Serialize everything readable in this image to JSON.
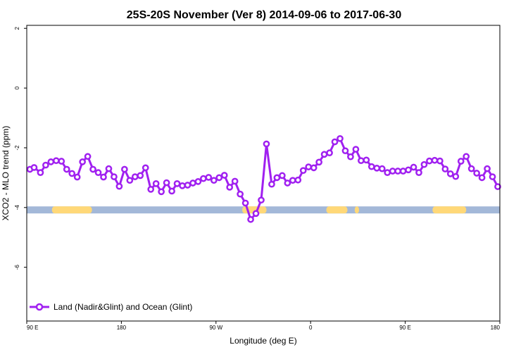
{
  "chart_data": {
    "type": "line",
    "title": "25S-20S November (Ver 8)   2014-09-06 to 2017-06-30",
    "xlabel": "Longitude (deg E)",
    "ylabel": "XCO2 - MLO trend (ppm)",
    "x_ticks": [
      {
        "value": 90,
        "label": "90 E"
      },
      {
        "value": 180,
        "label": "180"
      },
      {
        "value": 270,
        "label": "90 W"
      },
      {
        "value": 360,
        "label": "0"
      },
      {
        "value": 450,
        "label": "90 E"
      },
      {
        "value": 540,
        "label": "180"
      }
    ],
    "y_ticks": [
      {
        "value": 2,
        "label": "2"
      },
      {
        "value": 0,
        "label": "0"
      },
      {
        "value": -2,
        "label": "-2"
      },
      {
        "value": -4,
        "label": "-4"
      },
      {
        "value": -6,
        "label": "-6"
      }
    ],
    "xlim": [
      90,
      540
    ],
    "ylim": [
      -7.8,
      2.1
    ],
    "grid": false,
    "legend_position": "bottom-left",
    "series": [
      {
        "name": "Land (Nadir&Glint) and Ocean (Glint)",
        "color": "#a020f0",
        "x": [
          93,
          97,
          103,
          108,
          113,
          118,
          123,
          128,
          133,
          138,
          143,
          148,
          153,
          158,
          163,
          168,
          173,
          178,
          183,
          188,
          193,
          198,
          203,
          208,
          213,
          218,
          223,
          228,
          233,
          238,
          243,
          248,
          253,
          258,
          263,
          268,
          273,
          278,
          283,
          288,
          293,
          298,
          303,
          308,
          313,
          318,
          323,
          328,
          333,
          338,
          343,
          348,
          353,
          358,
          363,
          368,
          373,
          378,
          383,
          388,
          393,
          398,
          403,
          408,
          413,
          418,
          423,
          428,
          433,
          438,
          443,
          448,
          453,
          458,
          463,
          468,
          473,
          478,
          483,
          488,
          493,
          498,
          503,
          508,
          513,
          518,
          523,
          528,
          533,
          538
        ],
        "y": [
          -2.72,
          -2.66,
          -2.83,
          -2.58,
          -2.47,
          -2.43,
          -2.45,
          -2.72,
          -2.86,
          -2.98,
          -2.47,
          -2.29,
          -2.72,
          -2.83,
          -2.98,
          -2.7,
          -2.97,
          -3.29,
          -2.72,
          -3.09,
          -2.97,
          -2.93,
          -2.67,
          -3.39,
          -3.2,
          -3.47,
          -3.17,
          -3.45,
          -3.2,
          -3.27,
          -3.25,
          -3.18,
          -3.13,
          -3.03,
          -2.99,
          -3.09,
          -3.0,
          -2.92,
          -3.32,
          -3.12,
          -3.55,
          -3.85,
          -4.4,
          -4.2,
          -3.75,
          -1.87,
          -3.22,
          -3.0,
          -2.93,
          -3.18,
          -3.09,
          -3.08,
          -2.76,
          -2.64,
          -2.67,
          -2.48,
          -2.22,
          -2.17,
          -1.8,
          -1.69,
          -2.1,
          -2.3,
          -2.05,
          -2.43,
          -2.41,
          -2.63,
          -2.68,
          -2.7,
          -2.83,
          -2.78,
          -2.78,
          -2.78,
          -2.74,
          -2.65,
          -2.83,
          -2.56,
          -2.44,
          -2.42,
          -2.44,
          -2.71,
          -2.87,
          -2.96,
          -2.45,
          -2.29,
          -2.7,
          -2.85,
          -3.0,
          -2.7,
          -2.97,
          -3.3
        ]
      }
    ],
    "surface_bar": {
      "y": -4.08,
      "ocean_color": "#a3b8d8",
      "land_color": "#ffd878",
      "land_segments": [
        [
          114,
          152
        ],
        [
          295,
          318
        ],
        [
          375,
          395
        ],
        [
          402,
          406
        ],
        [
          476,
          508
        ]
      ]
    }
  }
}
